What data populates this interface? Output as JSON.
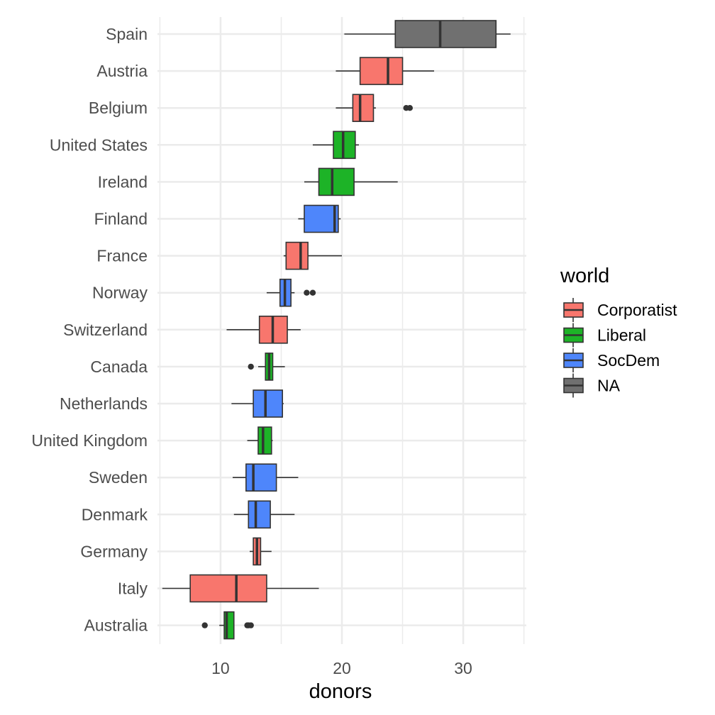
{
  "chart_data": {
    "type": "boxplot",
    "orientation": "horizontal",
    "xlabel": "donors",
    "ylabel": "",
    "xlim": [
      4.8,
      35.2
    ],
    "x_ticks": [
      10,
      20,
      30
    ],
    "grid": true,
    "legend": {
      "title": "world",
      "placement": "right",
      "entries": [
        {
          "label": "Corporatist",
          "color": "#F8766D"
        },
        {
          "label": "Liberal",
          "color": "#1DB327"
        },
        {
          "label": "SocDem",
          "color": "#4E86FB"
        },
        {
          "label": "NA",
          "color": "#707070"
        }
      ]
    },
    "categories": [
      "Spain",
      "Austria",
      "Belgium",
      "United States",
      "Ireland",
      "Finland",
      "France",
      "Norway",
      "Switzerland",
      "Canada",
      "Netherlands",
      "United Kingdom",
      "Sweden",
      "Denmark",
      "Germany",
      "Italy",
      "Australia"
    ],
    "series": [
      {
        "category": "Spain",
        "group": "NA",
        "whisker_low": 20.2,
        "q1": 24.4,
        "median": 28.1,
        "q3": 32.7,
        "whisker_high": 33.9,
        "outliers": []
      },
      {
        "category": "Austria",
        "group": "Corporatist",
        "whisker_low": 19.5,
        "q1": 21.5,
        "median": 23.8,
        "q3": 25.0,
        "whisker_high": 27.6,
        "outliers": []
      },
      {
        "category": "Belgium",
        "group": "Corporatist",
        "whisker_low": 19.5,
        "q1": 20.9,
        "median": 21.5,
        "q3": 22.6,
        "whisker_high": 22.8,
        "outliers": [
          25.3,
          25.6
        ]
      },
      {
        "category": "United States",
        "group": "Liberal",
        "whisker_low": 17.6,
        "q1": 19.3,
        "median": 20.1,
        "q3": 21.1,
        "whisker_high": 21.4,
        "outliers": []
      },
      {
        "category": "Ireland",
        "group": "Liberal",
        "whisker_low": 16.9,
        "q1": 18.1,
        "median": 19.2,
        "q3": 21.0,
        "whisker_high": 24.6,
        "outliers": []
      },
      {
        "category": "Finland",
        "group": "SocDem",
        "whisker_low": 16.4,
        "q1": 16.9,
        "median": 19.4,
        "q3": 19.7,
        "whisker_high": 19.9,
        "outliers": []
      },
      {
        "category": "France",
        "group": "Corporatist",
        "whisker_low": 15.2,
        "q1": 15.4,
        "median": 16.6,
        "q3": 17.2,
        "whisker_high": 20.0,
        "outliers": []
      },
      {
        "category": "Norway",
        "group": "SocDem",
        "whisker_low": 13.8,
        "q1": 14.9,
        "median": 15.3,
        "q3": 15.8,
        "whisker_high": 16.1,
        "outliers": [
          17.1,
          17.6
        ]
      },
      {
        "category": "Switzerland",
        "group": "Corporatist",
        "whisker_low": 10.5,
        "q1": 13.2,
        "median": 14.3,
        "q3": 15.5,
        "whisker_high": 16.6,
        "outliers": []
      },
      {
        "category": "Canada",
        "group": "Liberal",
        "whisker_low": 13.1,
        "q1": 13.7,
        "median": 14.0,
        "q3": 14.3,
        "whisker_high": 15.3,
        "outliers": [
          12.5
        ]
      },
      {
        "category": "Netherlands",
        "group": "SocDem",
        "whisker_low": 10.9,
        "q1": 12.7,
        "median": 13.7,
        "q3": 15.1,
        "whisker_high": 15.2,
        "outliers": []
      },
      {
        "category": "United Kingdom",
        "group": "Liberal",
        "whisker_low": 12.2,
        "q1": 13.1,
        "median": 13.5,
        "q3": 14.2,
        "whisker_high": 14.3,
        "outliers": []
      },
      {
        "category": "Sweden",
        "group": "SocDem",
        "whisker_low": 11.0,
        "q1": 12.1,
        "median": 12.7,
        "q3": 14.6,
        "whisker_high": 16.4,
        "outliers": []
      },
      {
        "category": "Denmark",
        "group": "SocDem",
        "whisker_low": 11.1,
        "q1": 12.3,
        "median": 12.9,
        "q3": 14.1,
        "whisker_high": 16.1,
        "outliers": []
      },
      {
        "category": "Germany",
        "group": "Corporatist",
        "whisker_low": 12.4,
        "q1": 12.7,
        "median": 13.0,
        "q3": 13.3,
        "whisker_high": 14.2,
        "outliers": []
      },
      {
        "category": "Italy",
        "group": "Corporatist",
        "whisker_low": 5.2,
        "q1": 7.5,
        "median": 11.3,
        "q3": 13.8,
        "whisker_high": 18.1,
        "outliers": []
      },
      {
        "category": "Australia",
        "group": "Liberal",
        "whisker_low": 9.9,
        "q1": 10.3,
        "median": 10.5,
        "q3": 11.1,
        "whisker_high": 11.1,
        "outliers": [
          8.7,
          12.2,
          12.3,
          12.5
        ]
      }
    ]
  }
}
